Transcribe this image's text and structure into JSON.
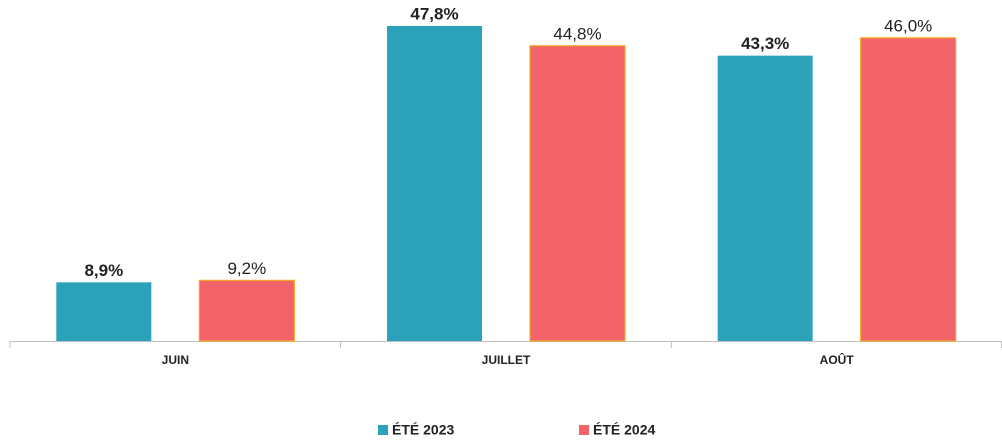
{
  "chart_data": {
    "type": "bar",
    "categories": [
      "JUIN",
      "JUILLET",
      "AOÛT"
    ],
    "series": [
      {
        "name": "ÉTÉ 2023",
        "color": "#2ca2ba",
        "values": [
          8.9,
          47.8,
          43.3
        ],
        "value_labels": [
          "8,9%",
          "47,8%",
          "43,3%"
        ]
      },
      {
        "name": "ÉTÉ 2024",
        "color": "#f26469",
        "values": [
          9.2,
          44.8,
          46.0
        ],
        "value_labels": [
          "9,2%",
          "44,8%",
          "46,0%"
        ]
      }
    ]
  }
}
